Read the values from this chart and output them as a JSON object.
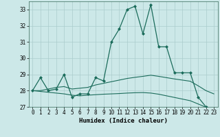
{
  "xlabel": "Humidex (Indice chaleur)",
  "background_color": "#cce8e8",
  "grid_color": "#aacccc",
  "line_color": "#1a6b5a",
  "xlim": [
    -0.5,
    23.5
  ],
  "ylim": [
    27,
    33.5
  ],
  "yticks": [
    27,
    28,
    29,
    30,
    31,
    32,
    33
  ],
  "xticks": [
    0,
    1,
    2,
    3,
    4,
    5,
    6,
    7,
    8,
    9,
    10,
    11,
    12,
    13,
    14,
    15,
    16,
    17,
    18,
    19,
    20,
    21,
    22,
    23
  ],
  "series1_x": [
    0,
    1,
    2,
    3,
    4,
    5,
    6,
    7,
    8,
    9,
    10,
    11,
    12,
    13,
    14,
    15,
    16,
    17,
    18,
    19,
    20,
    21,
    22,
    23
  ],
  "series1_y": [
    28.0,
    28.8,
    28.0,
    28.1,
    29.0,
    27.6,
    27.8,
    27.8,
    28.8,
    28.6,
    31.0,
    31.8,
    33.0,
    33.2,
    31.5,
    33.3,
    30.7,
    30.7,
    29.1,
    29.1,
    29.1,
    27.6,
    27.0,
    26.8
  ],
  "series2_x": [
    0,
    1,
    2,
    3,
    4,
    5,
    6,
    7,
    8,
    9,
    10,
    11,
    12,
    13,
    14,
    15,
    16,
    17,
    18,
    19,
    20,
    21,
    22,
    23
  ],
  "series2_y": [
    28.0,
    28.0,
    28.1,
    28.2,
    28.25,
    28.1,
    28.15,
    28.2,
    28.35,
    28.45,
    28.55,
    28.65,
    28.75,
    28.82,
    28.88,
    28.95,
    28.88,
    28.8,
    28.72,
    28.65,
    28.58,
    28.3,
    28.0,
    27.8
  ],
  "series3_x": [
    0,
    1,
    2,
    3,
    4,
    5,
    6,
    7,
    8,
    9,
    10,
    11,
    12,
    13,
    14,
    15,
    16,
    17,
    18,
    19,
    20,
    21,
    22,
    23
  ],
  "series3_y": [
    28.0,
    27.95,
    27.9,
    27.85,
    27.8,
    27.72,
    27.68,
    27.72,
    27.75,
    27.78,
    27.8,
    27.82,
    27.85,
    27.87,
    27.88,
    27.85,
    27.78,
    27.68,
    27.58,
    27.48,
    27.38,
    27.18,
    26.98,
    26.78
  ]
}
